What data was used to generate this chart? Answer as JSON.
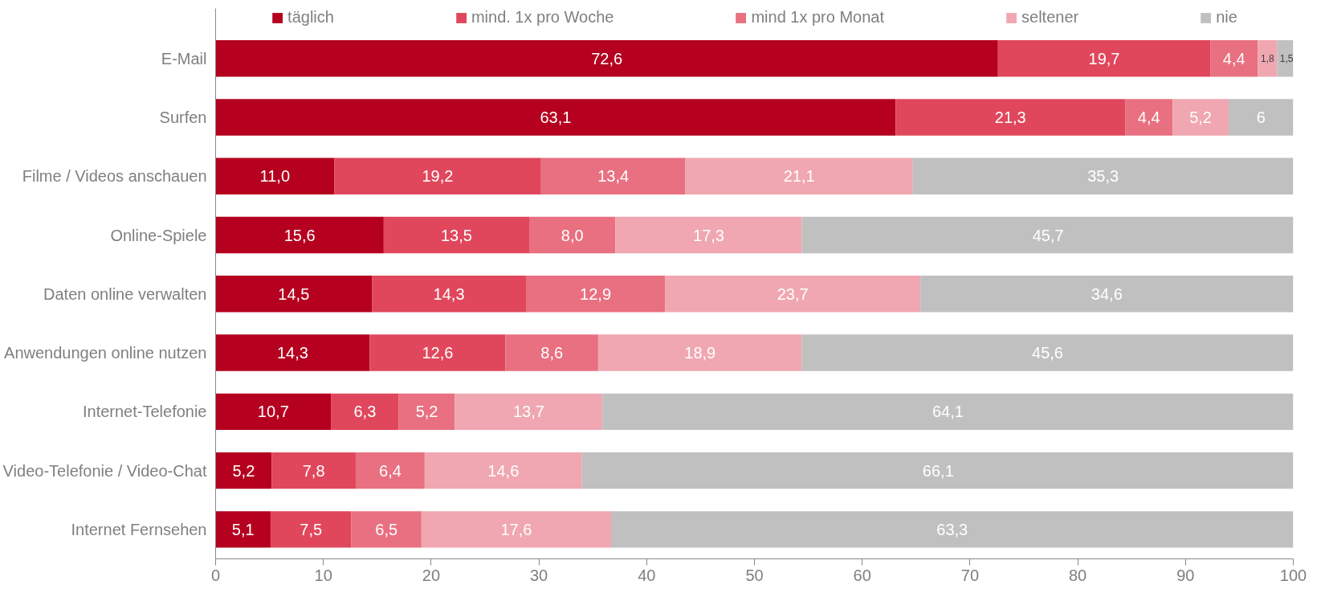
{
  "chart_data": {
    "type": "bar",
    "orientation": "horizontal",
    "stacked": true,
    "categories": [
      "E-Mail",
      "Surfen",
      "Filme / Videos anschauen",
      "Online-Spiele",
      "Daten online verwalten",
      "Anwendungen online nutzen",
      "Internet-Telefonie",
      "Video-Telefonie / Video-Chat",
      "Internet Fernsehen"
    ],
    "series": [
      {
        "name": "täglich",
        "color": "#b5001f",
        "values": [
          72.6,
          63.1,
          11.0,
          15.6,
          14.5,
          14.3,
          10.7,
          5.2,
          5.1
        ],
        "value_labels": [
          "72,6",
          "63,1",
          "11,0",
          "15,6",
          "14,5",
          "14,3",
          "10,7",
          "5,2",
          "5,1"
        ]
      },
      {
        "name": "mind. 1x pro Woche",
        "color": "#e0475c",
        "values": [
          19.7,
          21.3,
          19.2,
          13.5,
          14.3,
          12.6,
          6.3,
          7.8,
          7.5
        ],
        "value_labels": [
          "19,7",
          "21,3",
          "19,2",
          "13,5",
          "14,3",
          "12,6",
          "6,3",
          "7,8",
          "7,5"
        ]
      },
      {
        "name": "mind 1x pro Monat",
        "color": "#e87080",
        "values": [
          4.4,
          4.4,
          13.4,
          8.0,
          12.9,
          8.6,
          5.2,
          6.4,
          6.5
        ],
        "value_labels": [
          "4,4",
          "4,4",
          "13,4",
          "8,0",
          "12,9",
          "8,6",
          "5,2",
          "6,4",
          "6,5"
        ]
      },
      {
        "name": "seltener",
        "color": "#f0a7b1",
        "values": [
          1.8,
          5.2,
          21.1,
          17.3,
          23.7,
          18.9,
          13.7,
          14.6,
          17.6
        ],
        "value_labels": [
          "1,8",
          "5,2",
          "21,1",
          "17,3",
          "23,7",
          "18,9",
          "13,7",
          "14,6",
          "17,6"
        ]
      },
      {
        "name": "nie",
        "color": "#c0c0c0",
        "values": [
          1.5,
          6,
          35.3,
          45.7,
          34.6,
          45.6,
          64.1,
          66.1,
          63.3
        ],
        "value_labels": [
          "1,5",
          "6",
          "35,3",
          "45,7",
          "34,6",
          "45,6",
          "64,1",
          "66,1",
          "63,3"
        ]
      }
    ],
    "xlim": [
      0,
      100
    ],
    "xticks": [
      0,
      10,
      20,
      30,
      40,
      50,
      60,
      70,
      80,
      90,
      100
    ],
    "grid": false,
    "legend": "top"
  }
}
